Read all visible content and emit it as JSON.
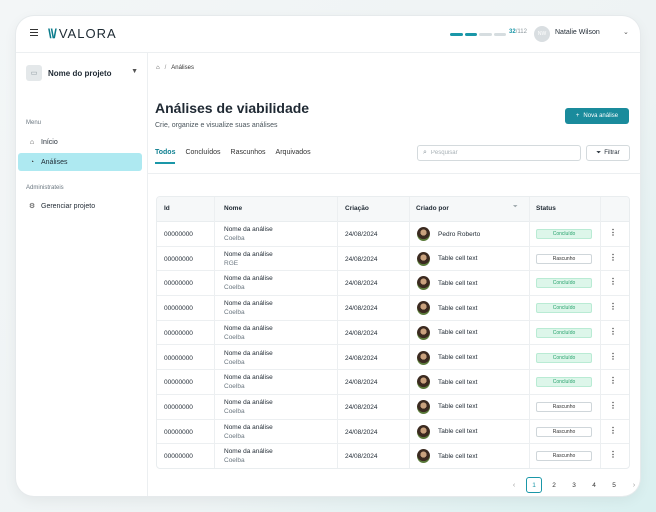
{
  "app": {
    "logo_text": "VALORA"
  },
  "header": {
    "progress_current": "32",
    "progress_total": "/112",
    "progress_fraction": 0.2857,
    "user_initials": "NW",
    "user_name": "Natalie Wilson"
  },
  "sidebar": {
    "project_name": "Nome do projeto",
    "menu_label": "Menu",
    "items": [
      {
        "label": "Início",
        "icon": "home-icon"
      },
      {
        "label": "Análises",
        "icon": "chart-pie-icon",
        "active": true
      }
    ],
    "admin_label": "Administrateis",
    "admin_items": [
      {
        "label": "Gerenciar projeto",
        "icon": "gear-icon"
      }
    ]
  },
  "breadcrumb": {
    "current": "Análises"
  },
  "page": {
    "title": "Análises de viabilidade",
    "subtitle": "Crie, organize e visualize suas análises",
    "new_button": "Nova análise"
  },
  "tabs": [
    "Todos",
    "Concluídos",
    "Rascunhos",
    "Arquivados"
  ],
  "search": {
    "placeholder": "Pesquisar"
  },
  "filter_button": "Filtrar",
  "table": {
    "columns": [
      "Id",
      "Nome",
      "Criação",
      "Criado por",
      "Status"
    ],
    "rows": [
      {
        "id": "00000000",
        "name": "Nome da análise",
        "sub": "Coelba",
        "date": "24/08/2024",
        "creator": "Pedro Roberto",
        "status": "Concluído",
        "status_type": "done"
      },
      {
        "id": "00000000",
        "name": "Nome da análise",
        "sub": "RGE",
        "date": "24/08/2024",
        "creator": "Table cell text",
        "status": "Rascunho",
        "status_type": "draft"
      },
      {
        "id": "00000000",
        "name": "Nome da análise",
        "sub": "Coelba",
        "date": "24/08/2024",
        "creator": "Table cell text",
        "status": "Concluído",
        "status_type": "done"
      },
      {
        "id": "00000000",
        "name": "Nome da análise",
        "sub": "Coelba",
        "date": "24/08/2024",
        "creator": "Table cell text",
        "status": "Concluído",
        "status_type": "done"
      },
      {
        "id": "00000000",
        "name": "Nome da análise",
        "sub": "Coelba",
        "date": "24/08/2024",
        "creator": "Table cell text",
        "status": "Concluído",
        "status_type": "done"
      },
      {
        "id": "00000000",
        "name": "Nome da análise",
        "sub": "Coelba",
        "date": "24/08/2024",
        "creator": "Table cell text",
        "status": "Concluído",
        "status_type": "done"
      },
      {
        "id": "00000000",
        "name": "Nome da análise",
        "sub": "Coelba",
        "date": "24/08/2024",
        "creator": "Table cell text",
        "status": "Concluído",
        "status_type": "done"
      },
      {
        "id": "00000000",
        "name": "Nome da análise",
        "sub": "Coelba",
        "date": "24/08/2024",
        "creator": "Table cell text",
        "status": "Rascunho",
        "status_type": "draft"
      },
      {
        "id": "00000000",
        "name": "Nome da análise",
        "sub": "Coelba",
        "date": "24/08/2024",
        "creator": "Table cell text",
        "status": "Rascunho",
        "status_type": "draft"
      },
      {
        "id": "00000000",
        "name": "Nome da análise",
        "sub": "Coelba",
        "date": "24/08/2024",
        "creator": "Table cell text",
        "status": "Rascunho",
        "status_type": "draft"
      }
    ]
  },
  "pagination": {
    "pages": [
      "1",
      "2",
      "3",
      "4",
      "5"
    ],
    "current": "1",
    "prev": "‹",
    "next": "›"
  },
  "colors": {
    "accent": "#1a8b9c",
    "active_nav": "#aee9f1",
    "done_badge": "#ddf6ea"
  }
}
